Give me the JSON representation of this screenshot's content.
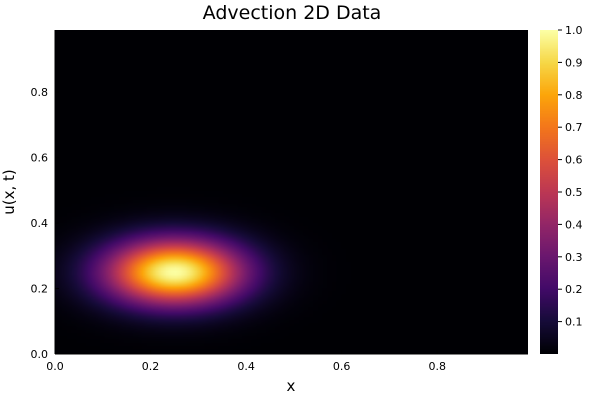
{
  "chart_data": {
    "type": "heatmap",
    "title": "Advection 2D Data",
    "xlabel": "x",
    "ylabel": "u(x, t)",
    "xlim": [
      0.0,
      0.99
    ],
    "ylim": [
      0.0,
      0.99
    ],
    "x_ticks": [
      {
        "value": 0.0,
        "label": "0.0"
      },
      {
        "value": 0.2,
        "label": "0.2"
      },
      {
        "value": 0.4,
        "label": "0.4"
      },
      {
        "value": 0.6,
        "label": "0.6"
      },
      {
        "value": 0.8,
        "label": "0.8"
      }
    ],
    "y_ticks": [
      {
        "value": 0.0,
        "label": "0.0"
      },
      {
        "value": 0.2,
        "label": "0.2"
      },
      {
        "value": 0.4,
        "label": "0.4"
      },
      {
        "value": 0.6,
        "label": "0.6"
      },
      {
        "value": 0.8,
        "label": "0.8"
      }
    ],
    "grid_resolution": 100,
    "field": {
      "kind": "gaussian",
      "center_x": 0.25,
      "center_y": 0.25,
      "sigma_x": 0.1,
      "sigma_y": 0.07,
      "peak": 1.0
    },
    "colorbar": {
      "range": [
        0.0,
        1.0
      ],
      "colormap": "inferno",
      "ticks": [
        {
          "value": 0.1,
          "label": "0.1"
        },
        {
          "value": 0.2,
          "label": "0.2"
        },
        {
          "value": 0.3,
          "label": "0.3"
        },
        {
          "value": 0.4,
          "label": "0.4"
        },
        {
          "value": 0.5,
          "label": "0.5"
        },
        {
          "value": 0.6,
          "label": "0.6"
        },
        {
          "value": 0.7,
          "label": "0.7"
        },
        {
          "value": 0.8,
          "label": "0.8"
        },
        {
          "value": 0.9,
          "label": "0.9"
        },
        {
          "value": 1.0,
          "label": "1.0"
        }
      ]
    }
  }
}
